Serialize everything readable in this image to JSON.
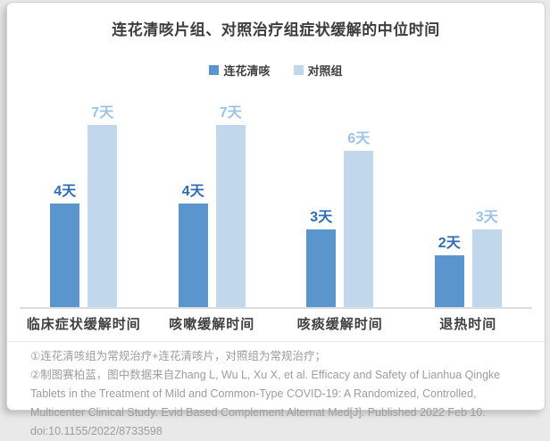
{
  "page": {
    "title": "连花清咳片组、对照治疗组症状缓解的中位时间"
  },
  "chart_data": {
    "type": "bar",
    "title": "连花清咳片组、对照治疗组症状缓解的中位时间",
    "categories": [
      "临床症状缓解时间",
      "咳嗽缓解时间",
      "咳痰缓解时间",
      "退热时间"
    ],
    "series": [
      {
        "name": "连花清咳",
        "values": [
          4,
          4,
          3,
          2
        ],
        "value_labels": [
          "4天",
          "4天",
          "3天",
          "2天"
        ],
        "color": "#5a96cd",
        "label_color": "#2e6eb5"
      },
      {
        "name": "对照组",
        "values": [
          7,
          7,
          6,
          3
        ],
        "value_labels": [
          "7天",
          "7天",
          "6天",
          "3天"
        ],
        "color": "#c1d7ec",
        "label_color": "#9cc3e6"
      }
    ],
    "unit": "天",
    "ylim": [
      0,
      8
    ],
    "grid": false,
    "legend_position": "top-center",
    "value_labels_shown": true
  },
  "footnotes": {
    "note1": "①连花清咳组为常规治疗+连花清咳片，对照组为常规治疗；",
    "note2": "②制图赛柏蓝，图中数据来自Zhang L, Wu L, Xu X, et al. Efficacy and Safety of Lianhua Qingke Tablets in the Treatment of Mild and Common-Type COVID-19: A Randomized, Controlled, Multicenter Clinical Study. Evid Based Complement Alternat Med[J]. Published 2022 Feb 10. doi:10.1155/2022/8733598"
  },
  "colors": {
    "title_text": "#3c3c3c",
    "category_text": "#3f3f3f",
    "footnote_text": "#9d9d9d",
    "axis_line": "#d9dee4",
    "card_background": "#ffffff",
    "page_background": "#e9e9e9",
    "series_dark_blue": "#5a96cd",
    "series_light_blue": "#c1d7ec"
  }
}
